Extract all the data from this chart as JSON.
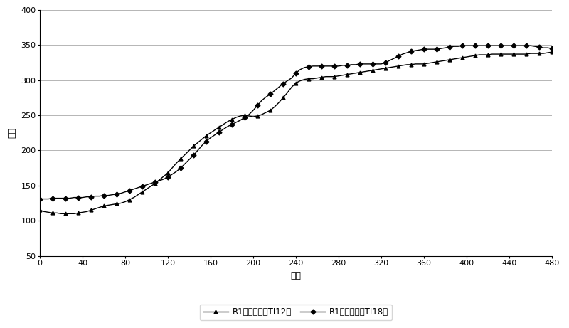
{
  "ti12_x": [
    0,
    4,
    8,
    12,
    16,
    20,
    24,
    28,
    32,
    36,
    40,
    44,
    48,
    52,
    56,
    60,
    64,
    68,
    72,
    76,
    80,
    84,
    88,
    92,
    96,
    100,
    104,
    108,
    112,
    116,
    120,
    124,
    128,
    132,
    136,
    140,
    144,
    148,
    152,
    156,
    160,
    164,
    168,
    172,
    176,
    180,
    184,
    188,
    192,
    196,
    200,
    204,
    208,
    212,
    216,
    220,
    224,
    228,
    232,
    236,
    240,
    244,
    248,
    252,
    256,
    260,
    264,
    268,
    272,
    276,
    280,
    284,
    288,
    292,
    296,
    300,
    304,
    308,
    312,
    316,
    320,
    324,
    328,
    332,
    336,
    340,
    344,
    348,
    352,
    356,
    360,
    364,
    368,
    372,
    376,
    380,
    384,
    388,
    392,
    396,
    400,
    404,
    408,
    412,
    416,
    420,
    424,
    428,
    432,
    436,
    440,
    444,
    448,
    452,
    456,
    460,
    464,
    468,
    472,
    476,
    480
  ],
  "ti12_y": [
    115,
    113,
    112,
    111,
    111,
    110,
    110,
    110,
    110,
    111,
    112,
    113,
    115,
    117,
    119,
    121,
    122,
    123,
    124,
    125,
    127,
    130,
    133,
    137,
    141,
    145,
    149,
    153,
    158,
    163,
    168,
    175,
    182,
    188,
    194,
    200,
    206,
    211,
    216,
    221,
    225,
    229,
    233,
    237,
    241,
    244,
    247,
    249,
    250,
    249,
    248,
    249,
    251,
    254,
    257,
    262,
    268,
    275,
    282,
    290,
    296,
    299,
    301,
    302,
    302,
    303,
    304,
    305,
    305,
    305,
    306,
    307,
    308,
    309,
    310,
    311,
    312,
    313,
    314,
    315,
    316,
    317,
    318,
    319,
    320,
    321,
    322,
    322,
    323,
    323,
    323,
    324,
    325,
    326,
    327,
    328,
    329,
    330,
    331,
    332,
    333,
    334,
    335,
    336,
    336,
    336,
    337,
    337,
    337,
    337,
    337,
    337,
    337,
    337,
    337,
    338,
    338,
    338,
    338,
    339,
    340
  ],
  "ti18_x": [
    0,
    4,
    8,
    12,
    16,
    20,
    24,
    28,
    32,
    36,
    40,
    44,
    48,
    52,
    56,
    60,
    64,
    68,
    72,
    76,
    80,
    84,
    88,
    92,
    96,
    100,
    104,
    108,
    112,
    116,
    120,
    124,
    128,
    132,
    136,
    140,
    144,
    148,
    152,
    156,
    160,
    164,
    168,
    172,
    176,
    180,
    184,
    188,
    192,
    196,
    200,
    204,
    208,
    212,
    216,
    220,
    224,
    228,
    232,
    236,
    240,
    244,
    248,
    252,
    256,
    260,
    264,
    268,
    272,
    276,
    280,
    284,
    288,
    292,
    296,
    300,
    304,
    308,
    312,
    316,
    320,
    324,
    328,
    332,
    336,
    340,
    344,
    348,
    352,
    356,
    360,
    364,
    368,
    372,
    376,
    380,
    384,
    388,
    392,
    396,
    400,
    404,
    408,
    412,
    416,
    420,
    424,
    428,
    432,
    436,
    440,
    444,
    448,
    452,
    456,
    460,
    464,
    468,
    472,
    476,
    480
  ],
  "ti18_y": [
    131,
    131,
    131,
    132,
    132,
    132,
    132,
    132,
    133,
    133,
    133,
    134,
    134,
    135,
    135,
    136,
    136,
    137,
    138,
    139,
    141,
    143,
    145,
    147,
    149,
    151,
    153,
    155,
    157,
    159,
    162,
    166,
    170,
    175,
    181,
    187,
    193,
    200,
    207,
    213,
    218,
    222,
    226,
    230,
    234,
    237,
    240,
    243,
    247,
    251,
    257,
    264,
    271,
    276,
    280,
    285,
    290,
    295,
    299,
    303,
    310,
    315,
    318,
    319,
    320,
    320,
    320,
    320,
    320,
    320,
    320,
    321,
    321,
    322,
    322,
    323,
    323,
    323,
    323,
    323,
    323,
    325,
    328,
    331,
    334,
    337,
    339,
    341,
    342,
    343,
    344,
    344,
    344,
    344,
    345,
    346,
    347,
    348,
    348,
    349,
    349,
    349,
    349,
    349,
    349,
    349,
    349,
    349,
    349,
    349,
    349,
    349,
    349,
    349,
    349,
    349,
    348,
    347,
    346,
    346,
    345
  ],
  "xlabel": "时间",
  "ylabel": "温度",
  "xlim": [
    0,
    480
  ],
  "ylim": [
    50,
    400
  ],
  "xticks": [
    0,
    40,
    80,
    120,
    160,
    200,
    240,
    280,
    320,
    360,
    400,
    440,
    480
  ],
  "yticks": [
    50,
    100,
    150,
    200,
    250,
    300,
    350,
    400
  ],
  "legend_ti12": "R1入口温度（TI12）",
  "legend_ti18": "R1出口温度（TI18）",
  "line_color": "#000000",
  "marker_ti12": "^",
  "marker_ti18": "D",
  "markersize": 3.5,
  "linewidth": 1.0,
  "background_color": "#ffffff",
  "grid_color": "#aaaaaa"
}
